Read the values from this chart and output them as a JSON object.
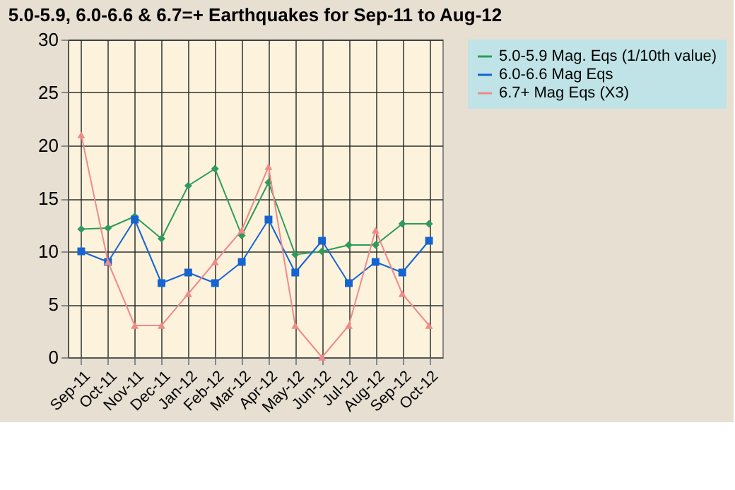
{
  "chart_data": {
    "type": "line",
    "title": "5.0-5.9, 6.0-6.6 & 6.7=+ Earthquakes for Sep-11 to Aug-12",
    "categories": [
      "Sep-11",
      "Oct-11",
      "Nov-11",
      "Dec-11",
      "Jan-12",
      "Feb-12",
      "Mar-12",
      "Apr-12",
      "May-12",
      "Jun-12",
      "Jul-12",
      "Aug-12",
      "Sep-12",
      "Oct-12"
    ],
    "series": [
      {
        "name": "5.0-5.9 Mag. Eqs (1/10th value)",
        "color": "#2e9b5a",
        "marker": "diamond",
        "values": [
          12.1,
          12.2,
          13.3,
          11.2,
          16.2,
          17.8,
          11.5,
          16.5,
          9.7,
          10.0,
          10.6,
          10.6,
          12.6,
          12.6
        ]
      },
      {
        "name": "6.0-6.6 Mag Eqs",
        "color": "#1464d2",
        "marker": "square",
        "values": [
          10,
          9,
          13,
          7,
          8,
          7,
          9,
          13,
          8,
          11,
          7,
          9,
          8,
          11
        ]
      },
      {
        "name": "6.7+ Mag Eqs (X3)",
        "color": "#f08a8a",
        "marker": "triangle",
        "values": [
          21,
          9,
          3,
          3,
          6,
          9,
          12,
          18,
          3,
          0,
          3,
          12,
          6,
          3
        ]
      }
    ],
    "ylim": [
      0,
      30
    ],
    "yticks": [
      0,
      5,
      10,
      15,
      20,
      25,
      30
    ],
    "grid": true,
    "legend": "right",
    "line_style": "solid"
  }
}
